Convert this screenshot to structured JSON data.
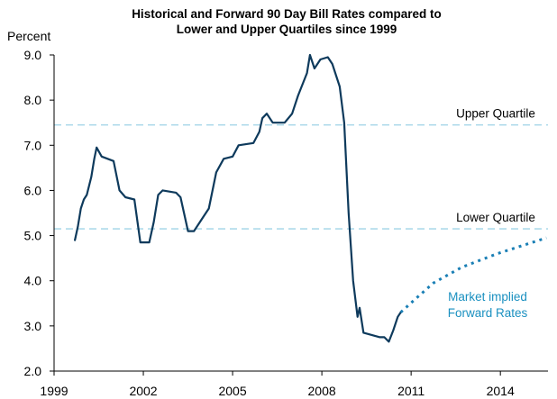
{
  "chart_data": {
    "type": "line",
    "title": [
      "Historical and Forward 90 Day Bill Rates compared to",
      "Lower and Upper Quartiles since 1999"
    ],
    "y_label": "Percent",
    "xlim": [
      1999,
      2015.6
    ],
    "xticks": [
      1999,
      2002,
      2005,
      2008,
      2011,
      2014
    ],
    "ylim": [
      2,
      9
    ],
    "yticks": [
      {
        "value": 2,
        "label": "2.0"
      },
      {
        "value": 3,
        "label": "3.0"
      },
      {
        "value": 4,
        "label": "4.0"
      },
      {
        "value": 5,
        "label": "5.0"
      },
      {
        "value": 6,
        "label": "6.0"
      },
      {
        "value": 7,
        "label": "7.0"
      },
      {
        "value": 8,
        "label": "8.0"
      },
      {
        "value": 9,
        "label": "9.0"
      }
    ],
    "series": [
      {
        "name": "Historical",
        "color": "#0e3a5c",
        "style": "solid",
        "x": [
          1999.7,
          1999.8,
          1999.9,
          2000.0,
          2000.1,
          2000.25,
          2000.35,
          2000.43,
          2000.6,
          2000.8,
          2001.0,
          2001.2,
          2001.4,
          2001.7,
          2001.9,
          2002.2,
          2002.35,
          2002.5,
          2002.65,
          2003.1,
          2003.25,
          2003.5,
          2003.7,
          2004.0,
          2004.2,
          2004.45,
          2004.7,
          2005.0,
          2005.2,
          2005.7,
          2005.9,
          2006.0,
          2006.15,
          2006.35,
          2006.75,
          2007.0,
          2007.2,
          2007.5,
          2007.6,
          2007.75,
          2007.95,
          2008.2,
          2008.35,
          2008.6,
          2008.75,
          2008.9,
          2009.05,
          2009.2,
          2009.27,
          2009.4,
          2009.95,
          2010.1,
          2010.25,
          2010.4,
          2010.55,
          2010.65
        ],
        "values": [
          4.9,
          5.2,
          5.6,
          5.8,
          5.9,
          6.3,
          6.7,
          6.95,
          6.75,
          6.7,
          6.65,
          6.0,
          5.85,
          5.8,
          4.85,
          4.85,
          5.3,
          5.9,
          6.0,
          5.95,
          5.85,
          5.1,
          5.1,
          5.4,
          5.6,
          6.4,
          6.7,
          6.75,
          7.0,
          7.05,
          7.3,
          7.6,
          7.7,
          7.5,
          7.5,
          7.7,
          8.1,
          8.6,
          9.0,
          8.7,
          8.9,
          8.95,
          8.8,
          8.3,
          7.5,
          5.5,
          4.0,
          3.2,
          3.4,
          2.85,
          2.75,
          2.75,
          2.65,
          2.9,
          3.2,
          3.3
        ]
      },
      {
        "name": "Forward",
        "color": "#1a7fb5",
        "style": "dotted",
        "x": [
          2010.65,
          2011.15,
          2011.75,
          2012.7,
          2013.9,
          2015.55
        ],
        "values": [
          3.3,
          3.6,
          3.95,
          4.3,
          4.6,
          4.95
        ]
      }
    ],
    "reference_lines": [
      {
        "name": "Upper Quartile",
        "value": 7.45,
        "color": "#9fd3e6"
      },
      {
        "name": "Lower Quartile",
        "value": 5.15,
        "color": "#9fd3e6"
      }
    ],
    "annotations": [
      {
        "lines": [
          "Market implied",
          "Forward Rates"
        ],
        "color": "#1a90c0"
      }
    ]
  }
}
